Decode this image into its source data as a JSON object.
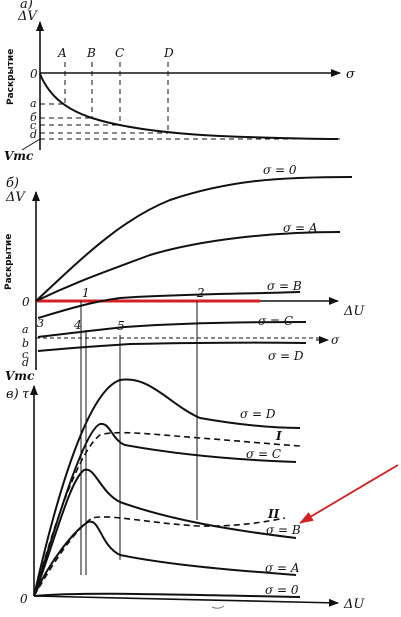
{
  "panel_a": {
    "panel_label": "a)",
    "y_axis": "ΔV",
    "vertical_label": "Раскрытие",
    "origin": "0",
    "x_axis": "σ",
    "stress_marks": [
      "A",
      "B",
      "C",
      "D"
    ],
    "curve_levels": [
      "a",
      "б",
      "c",
      "d"
    ],
    "vmc": "Vmc"
  },
  "panel_b": {
    "panel_label": "б)",
    "y_axis": "ΔV",
    "vertical_label": "Раскрытие",
    "origin": "0",
    "x_axis": "ΔU",
    "curves": [
      {
        "key": "s0",
        "label": "σ = 0"
      },
      {
        "key": "sA",
        "label": "σ = A"
      },
      {
        "key": "sB",
        "label": "σ = B"
      },
      {
        "key": "sC",
        "label": "σ = C"
      },
      {
        "key": "sD",
        "label": "σ = D"
      }
    ],
    "points": [
      "1",
      "2",
      "3",
      "4",
      "5"
    ],
    "levels": [
      "a",
      "b",
      "c",
      "d"
    ],
    "sigma_arrow": "σ",
    "vmc": "Vmc"
  },
  "panel_c": {
    "panel_label": "в)",
    "y_axis": "τ",
    "origin": "0",
    "x_axis": "ΔU",
    "curves": [
      {
        "key": "sD",
        "label": "σ = D"
      },
      {
        "key": "sC",
        "label": "σ = C"
      },
      {
        "key": "I",
        "label": "I"
      },
      {
        "key": "II",
        "label": "II"
      },
      {
        "key": "sB",
        "label": "σ = B"
      },
      {
        "key": "sA",
        "label": "σ = A"
      },
      {
        "key": "s0",
        "label": "σ = 0"
      }
    ]
  },
  "colors": {
    "ink": "#111111",
    "highlight_line": "#d42020",
    "arrow": "#d42020"
  }
}
